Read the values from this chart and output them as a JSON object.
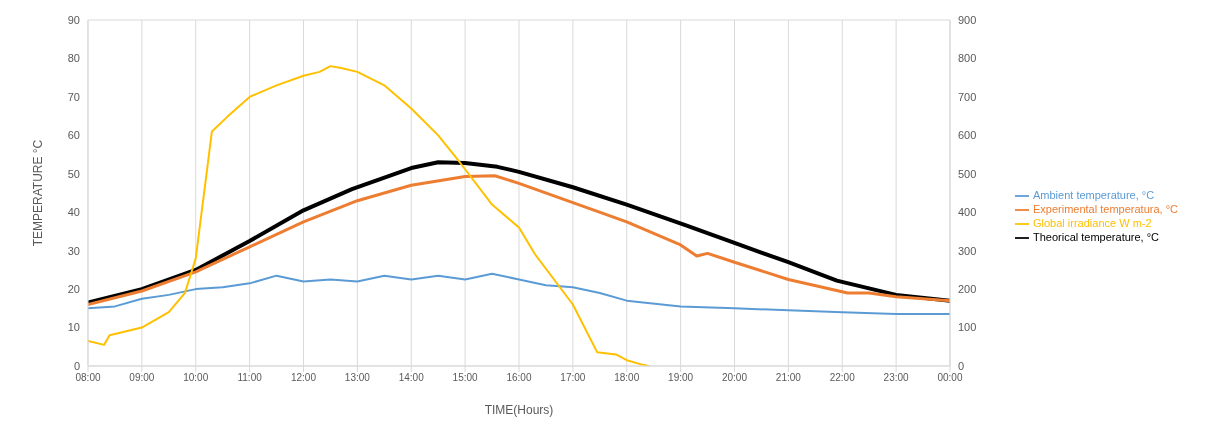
{
  "chart_data": {
    "type": "line",
    "xlabel": "TIME(Hours)",
    "ylabel": "TEMPERATURE °C",
    "xlim": [
      8,
      24
    ],
    "xticks": [
      {
        "value": 8,
        "label": "08:00"
      },
      {
        "value": 9,
        "label": "09:00"
      },
      {
        "value": 10,
        "label": "10:00"
      },
      {
        "value": 11,
        "label": "11:00"
      },
      {
        "value": 12,
        "label": "12:00"
      },
      {
        "value": 13,
        "label": "13:00"
      },
      {
        "value": 14,
        "label": "14:00"
      },
      {
        "value": 15,
        "label": "15:00"
      },
      {
        "value": 16,
        "label": "16:00"
      },
      {
        "value": 17,
        "label": "17:00"
      },
      {
        "value": 18,
        "label": "18:00"
      },
      {
        "value": 19,
        "label": "19:00"
      },
      {
        "value": 20,
        "label": "20:00"
      },
      {
        "value": 21,
        "label": "21:00"
      },
      {
        "value": 22,
        "label": "22:00"
      },
      {
        "value": 23,
        "label": "23:00"
      },
      {
        "value": 24,
        "label": "00:00"
      }
    ],
    "ylim": [
      0,
      90
    ],
    "yticks": [
      0,
      10,
      20,
      30,
      40,
      50,
      60,
      70,
      80,
      90
    ],
    "y2lim": [
      0,
      900
    ],
    "y2ticks": [
      0,
      100,
      200,
      300,
      400,
      500,
      600,
      700,
      800,
      900
    ],
    "grid": true,
    "legend": "right",
    "marker": "none",
    "line_style": "solid",
    "series": [
      {
        "name": "Theorical temperature, °C",
        "color": "#000000",
        "x": [
          8,
          9,
          10,
          11,
          12,
          12.9,
          14,
          14.5,
          15,
          15.6,
          16,
          17,
          18,
          19.1,
          20,
          21,
          21.9,
          23,
          24
        ],
        "values": [
          16.5,
          20,
          25,
          32.5,
          40.5,
          46,
          51.5,
          53,
          52.8,
          51.8,
          50.5,
          46.5,
          42,
          36.6,
          32,
          27,
          22.2,
          18.5,
          17
        ]
      },
      {
        "name": "Experimental temperatura, °C",
        "color": "#ed7d31",
        "x": [
          8,
          9,
          10,
          11,
          12,
          13,
          14,
          15,
          15.55,
          16,
          17,
          18,
          19,
          19.3,
          19.5,
          20,
          21,
          22.1,
          22.5,
          23,
          24
        ],
        "values": [
          16,
          19.5,
          24.5,
          31,
          37.5,
          43,
          47,
          49.3,
          49.5,
          47.5,
          42.5,
          37.5,
          31.5,
          28.6,
          29.3,
          27,
          22.5,
          19,
          19,
          18,
          17
        ]
      },
      {
        "name": "Ambient temperature, °C",
        "color": "#5b9bd5",
        "x": [
          8,
          8.5,
          9,
          9.5,
          10,
          10.5,
          11,
          11.5,
          12,
          12.5,
          13,
          13.5,
          14,
          14.5,
          15,
          15.5,
          16,
          16.5,
          17,
          17.5,
          18,
          19,
          20,
          21,
          22,
          23,
          24
        ],
        "values": [
          15,
          15.5,
          17.5,
          18.5,
          20,
          20.5,
          21.5,
          23.5,
          22,
          22.5,
          22,
          23.5,
          22.5,
          23.5,
          22.5,
          24,
          22.5,
          21,
          20.5,
          19,
          17,
          15.5,
          15,
          14.5,
          14,
          13.5,
          13.5
        ]
      },
      {
        "name": "Global irradiance W m-2",
        "color": "#ffc000",
        "axis": "y2",
        "x": [
          8,
          8.3,
          8.4,
          9,
          9.5,
          9.8,
          10,
          10.2,
          10.3,
          10.6,
          11,
          11.5,
          12,
          12.3,
          12.5,
          12.7,
          13,
          13.5,
          14,
          14.5,
          14.9,
          15.5,
          16,
          16.3,
          17,
          17.45,
          17.8,
          18,
          18.3,
          18.4
        ],
        "values": [
          65,
          55,
          80,
          100,
          140,
          190,
          280,
          500,
          610,
          650,
          700,
          730,
          755,
          765,
          780,
          775,
          765,
          730,
          670,
          600,
          530,
          420,
          360,
          290,
          160,
          36,
          30,
          15,
          3,
          0
        ]
      }
    ]
  }
}
